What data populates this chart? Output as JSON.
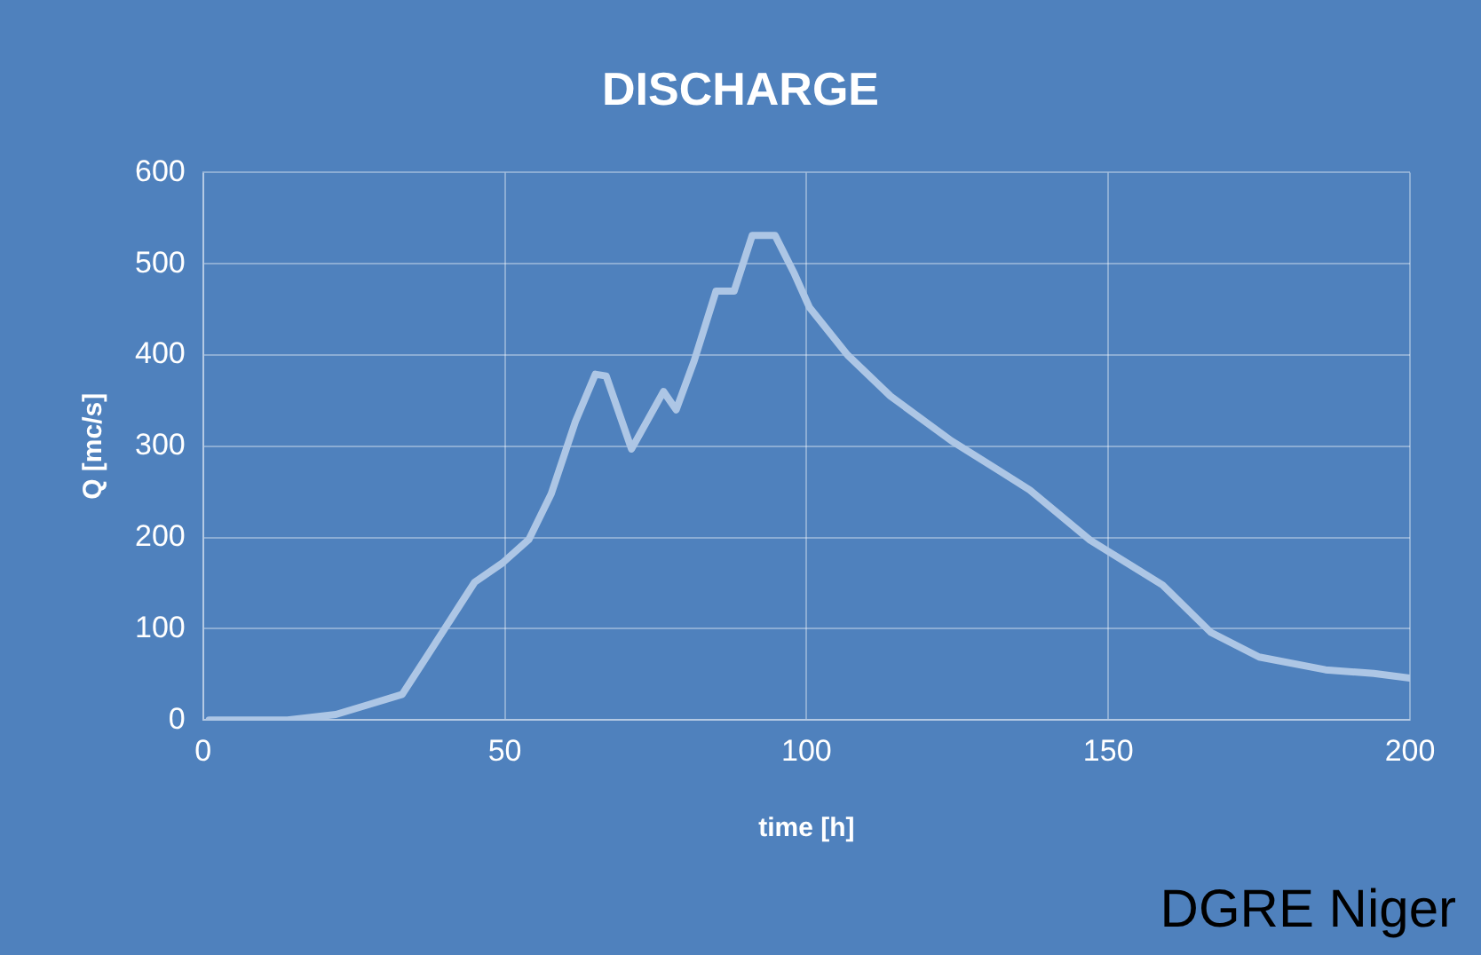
{
  "chart_data": {
    "type": "line",
    "title": "DISCHARGE",
    "xlabel": "time [h]",
    "ylabel": "Q [mc/s]",
    "annotations": [
      "DGRE Niger"
    ],
    "series": [
      {
        "color": "#adc6e5",
        "x": [
          1,
          14,
          22,
          27.5,
          33,
          37.6,
          45,
          49.6,
          54,
          57.7,
          61.7,
          65,
          66.8,
          71,
          76.3,
          78.4,
          81.4,
          85,
          88,
          91,
          94.8,
          98,
          100.5,
          106.8,
          113.9,
          124,
          132,
          137,
          147,
          159,
          167,
          175,
          186,
          194,
          200
        ],
        "values": [
          0,
          0,
          6,
          17,
          28,
          75,
          151,
          172,
          198,
          248,
          327,
          379,
          377,
          297,
          360,
          340,
          394,
          470,
          470,
          531,
          531,
          489,
          452,
          400,
          355,
          306,
          273,
          252,
          197,
          148,
          96,
          69,
          55,
          51,
          46
        ]
      }
    ],
    "xlim": [
      0,
      200
    ],
    "xticks": [
      0,
      50,
      100,
      150,
      200
    ],
    "ylim": [
      0,
      600
    ],
    "yticks": [
      0,
      100,
      200,
      300,
      400,
      500,
      600
    ],
    "grid": true,
    "legend": false,
    "marker": "none",
    "line_style": "solid"
  }
}
